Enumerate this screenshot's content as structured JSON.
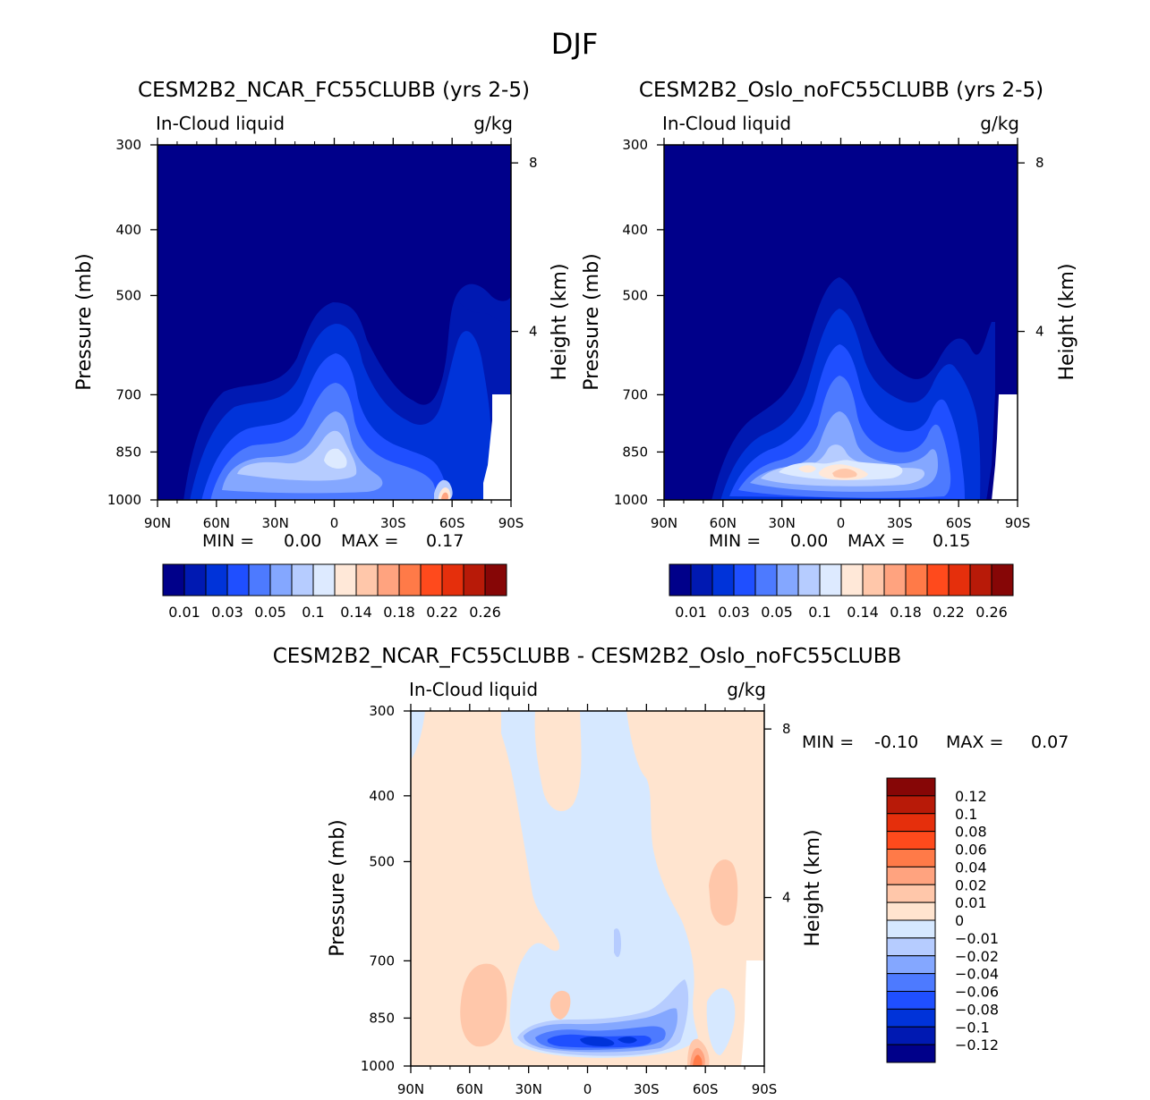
{
  "figure": {
    "title": "DJF"
  },
  "colors": {
    "panel_bg": "#00008a",
    "abs_palette": [
      "#00008a",
      "#0019b2",
      "#0033d9",
      "#1f4fff",
      "#4d7aff",
      "#84a7ff",
      "#b6ccff",
      "#ddeaff",
      "#ffe8d8",
      "#ffc7aa",
      "#ffa37f",
      "#ff7a48",
      "#ff4a1c",
      "#e52f0c",
      "#b81a08",
      "#860606"
    ],
    "diff_palette": [
      "#00008a",
      "#0019b2",
      "#0033d9",
      "#1f4fff",
      "#4d7aff",
      "#84a7ff",
      "#b6ccff",
      "#d6e8ff",
      "#ffe4cf",
      "#ffc7aa",
      "#ffa37f",
      "#ff7a48",
      "#ff4a1c",
      "#e52f0c",
      "#b81a08",
      "#860606"
    ]
  },
  "chart_data": [
    {
      "type": "contour",
      "title": "CESM2B2_NCAR_FC55CLUBB (yrs 2-5)",
      "variable": "In-Cloud liquid",
      "units": "g/kg",
      "ylabel": "Pressure (mb)",
      "ylabel_right": "Height (km)",
      "xticks": [
        "90N",
        "60N",
        "30N",
        "0",
        "30S",
        "60S",
        "90S"
      ],
      "yticks": [
        "300",
        "400",
        "500",
        "700",
        "850",
        "1000"
      ],
      "height_ticks": [
        "8",
        "4"
      ],
      "min_label": "MIN =",
      "min_value": "0.00",
      "max_label": "MAX =",
      "max_value": "0.17",
      "colorbar_labels": [
        "0.01",
        "0.03",
        "0.05",
        "0.1",
        "0.14",
        "0.18",
        "0.22",
        "0.26"
      ],
      "contour_levels": [
        0.01,
        0.02,
        0.03,
        0.04,
        0.05,
        0.07,
        0.1,
        0.12,
        0.14,
        0.16,
        0.18,
        0.2,
        0.22,
        0.24,
        0.26
      ],
      "max_location": {
        "lat": "58S",
        "pressure_mb": 980,
        "value": 0.17
      },
      "secondary_max": {
        "lat": "5N",
        "pressure_mb": 830,
        "value": 0.09
      }
    },
    {
      "type": "contour",
      "title": "CESM2B2_Oslo_noFC55CLUBB (yrs 2-5)",
      "variable": "In-Cloud liquid",
      "units": "g/kg",
      "ylabel": "Pressure (mb)",
      "ylabel_right": "Height (km)",
      "xticks": [
        "90N",
        "60N",
        "30N",
        "0",
        "30S",
        "60S",
        "90S"
      ],
      "yticks": [
        "300",
        "400",
        "500",
        "700",
        "850",
        "1000"
      ],
      "height_ticks": [
        "8",
        "4"
      ],
      "min_label": "MIN =",
      "min_value": "0.00",
      "max_label": "MAX =",
      "max_value": "0.15",
      "colorbar_labels": [
        "0.01",
        "0.03",
        "0.05",
        "0.1",
        "0.14",
        "0.18",
        "0.22",
        "0.26"
      ],
      "contour_levels": [
        0.01,
        0.02,
        0.03,
        0.04,
        0.05,
        0.07,
        0.1,
        0.12,
        0.14,
        0.16,
        0.18,
        0.2,
        0.22,
        0.24,
        0.26
      ],
      "max_location": {
        "lat": "0",
        "pressure_mb": 900,
        "value": 0.15
      }
    },
    {
      "type": "contour",
      "title": "CESM2B2_NCAR_FC55CLUBB - CESM2B2_Oslo_noFC55CLUBB",
      "variable": "In-Cloud liquid",
      "units": "g/kg",
      "ylabel": "Pressure (mb)",
      "ylabel_right": "Height (km)",
      "xticks": [
        "90N",
        "60N",
        "30N",
        "0",
        "30S",
        "60S",
        "90S"
      ],
      "yticks": [
        "300",
        "400",
        "500",
        "700",
        "850",
        "1000"
      ],
      "height_ticks": [
        "8",
        "4"
      ],
      "min_label": "MIN =",
      "min_value": "-0.10",
      "max_label": "MAX =",
      "max_value": "0.07",
      "colorbar_labels": [
        "0.12",
        "0.1",
        "0.08",
        "0.06",
        "0.04",
        "0.02",
        "0.01",
        "0",
        "-0.01",
        "-0.02",
        "-0.04",
        "-0.06",
        "-0.08",
        "-0.1",
        "-0.12"
      ],
      "min_location": {
        "lat": "0",
        "pressure_mb": 900,
        "value": -0.1
      },
      "max_location": {
        "lat": "58S",
        "pressure_mb": 980,
        "value": 0.07
      }
    }
  ]
}
